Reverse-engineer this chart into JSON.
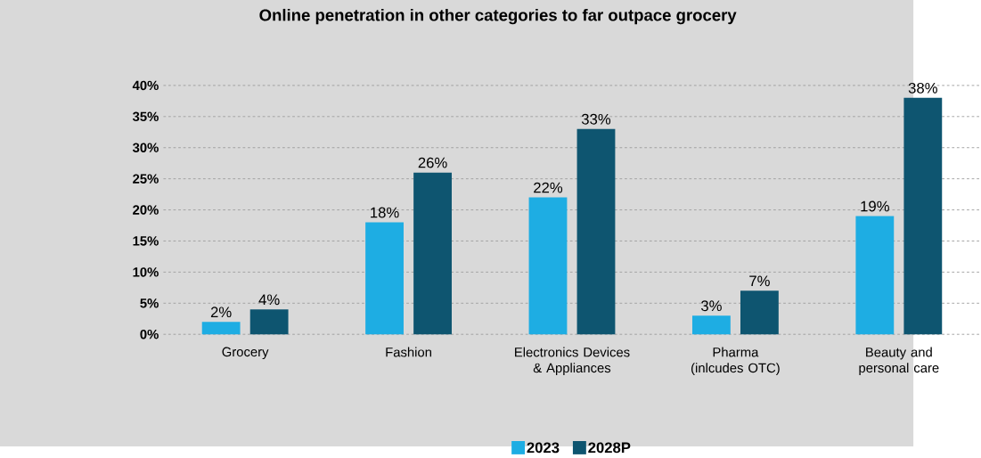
{
  "chart_data": {
    "type": "bar",
    "title": "Online penetration in other categories to far outpace grocery",
    "categories": [
      "Grocery",
      "Fashion",
      "Electronics Devices & Appliances",
      "Pharma (inlcudes OTC)",
      "Beauty and personal care"
    ],
    "series": [
      {
        "name": "2023",
        "color": "#1eade3",
        "values": [
          2,
          18,
          22,
          3,
          19
        ],
        "value_labels": [
          "2%",
          "18%",
          "22%",
          "3%",
          "19%"
        ]
      },
      {
        "name": "2028P",
        "color": "#0e5570",
        "values": [
          4,
          26,
          33,
          7,
          38
        ],
        "value_labels": [
          "4%",
          "26%",
          "33%",
          "7%",
          "38%"
        ]
      }
    ],
    "ylim": [
      0,
      40
    ],
    "yticks": [
      {
        "value": 0,
        "label": "0%"
      },
      {
        "value": 5,
        "label": "5%"
      },
      {
        "value": 10,
        "label": "10%"
      },
      {
        "value": 15,
        "label": "15%"
      },
      {
        "value": 20,
        "label": "20%"
      },
      {
        "value": 25,
        "label": "25%"
      },
      {
        "value": 30,
        "label": "30%"
      },
      {
        "value": 35,
        "label": "35%"
      },
      {
        "value": 40,
        "label": "40%"
      }
    ],
    "grid": "y",
    "legend": "bottom"
  }
}
